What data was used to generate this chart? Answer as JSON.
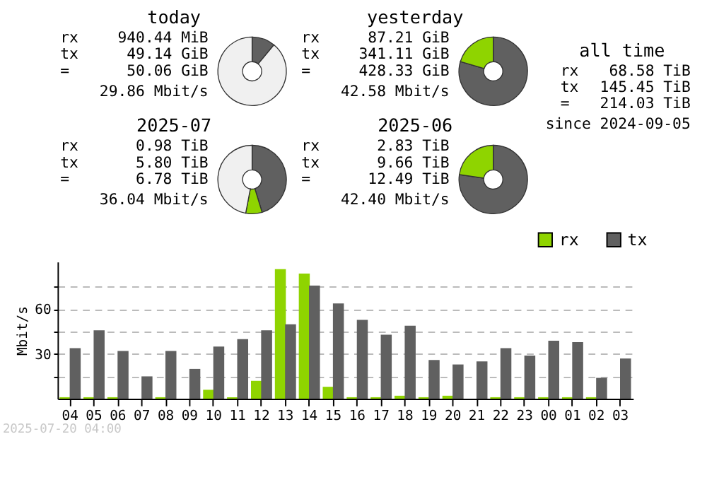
{
  "chart_data": [
    {
      "type": "donut",
      "title": "today",
      "categories": [
        null,
        null,
        null
      ],
      "values": [
        11,
        null,
        89
      ],
      "colors": [
        "#606060",
        "#8fd400",
        "#f0f0f0"
      ],
      "annotations": [
        "rx",
        "940.44 MiB",
        "tx",
        "49.14 GiB",
        "=",
        "50.06 GiB",
        "29.86 Mbit/s"
      ]
    },
    {
      "type": "donut",
      "title": "yesterday",
      "categories": [
        null,
        null
      ],
      "values": [
        79.6,
        20.4
      ],
      "colors": [
        "#606060",
        "#8fd400"
      ],
      "annotations": [
        "rx",
        "87.21 GiB",
        "tx",
        "341.11 GiB",
        "=",
        "428.33 GiB",
        "42.58 Mbit/s"
      ]
    },
    {
      "type": "other",
      "title": "all time",
      "annotations": [
        "rx",
        "68.58 TiB",
        "tx",
        "145.45 TiB",
        "=",
        "214.03 TiB",
        "since 2024-09-05"
      ]
    },
    {
      "type": "donut",
      "title": "2025-07",
      "categories": [
        null,
        null,
        null
      ],
      "values": [
        45.3,
        7.7,
        47
      ],
      "colors": [
        "#606060",
        "#8fd400",
        "#f0f0f0"
      ],
      "annotations": [
        "rx",
        "0.98 TiB",
        "tx",
        "5.80 TiB",
        "=",
        "6.78 TiB",
        "36.04 Mbit/s"
      ]
    },
    {
      "type": "donut",
      "title": "2025-06",
      "categories": [
        null,
        null
      ],
      "values": [
        77.3,
        22.7
      ],
      "colors": [
        "#606060",
        "#8fd400"
      ],
      "annotations": [
        "rx",
        "2.83 TiB",
        "tx",
        "9.66 TiB",
        "=",
        "12.49 TiB",
        "42.40 Mbit/s"
      ]
    },
    {
      "type": "bar",
      "ylabel": "Mbit/s",
      "ylim": [
        0,
        92
      ],
      "grid": "y",
      "legend": "top right",
      "yticks": [
        {
          "value": 15,
          "label": null
        },
        30,
        {
          "value": 45,
          "label": null
        },
        60,
        {
          "value": 75,
          "label": null
        }
      ],
      "categories": [
        "04",
        "05",
        "06",
        "07",
        "08",
        "09",
        "10",
        "11",
        "12",
        "13",
        "14",
        "15",
        "16",
        "17",
        "18",
        "19",
        "20",
        "21",
        "22",
        "23",
        "00",
        "01",
        "02",
        "03"
      ],
      "series": [
        {
          "name": "rx",
          "color": "#8fd400",
          "values": [
            1,
            1,
            1,
            0,
            1,
            0,
            6,
            1,
            12,
            87,
            84,
            8,
            1,
            1,
            2,
            1,
            2,
            0,
            1,
            1,
            1,
            1,
            1,
            0
          ]
        },
        {
          "name": "tx",
          "color": "#606060",
          "values": [
            34,
            46,
            32,
            15,
            32,
            20,
            35,
            40,
            46,
            50,
            76,
            64,
            53,
            43,
            49,
            26,
            23,
            25,
            34,
            29,
            39,
            38,
            14,
            27
          ]
        }
      ],
      "annotations": [
        "2025-07-20 04:00"
      ]
    }
  ]
}
